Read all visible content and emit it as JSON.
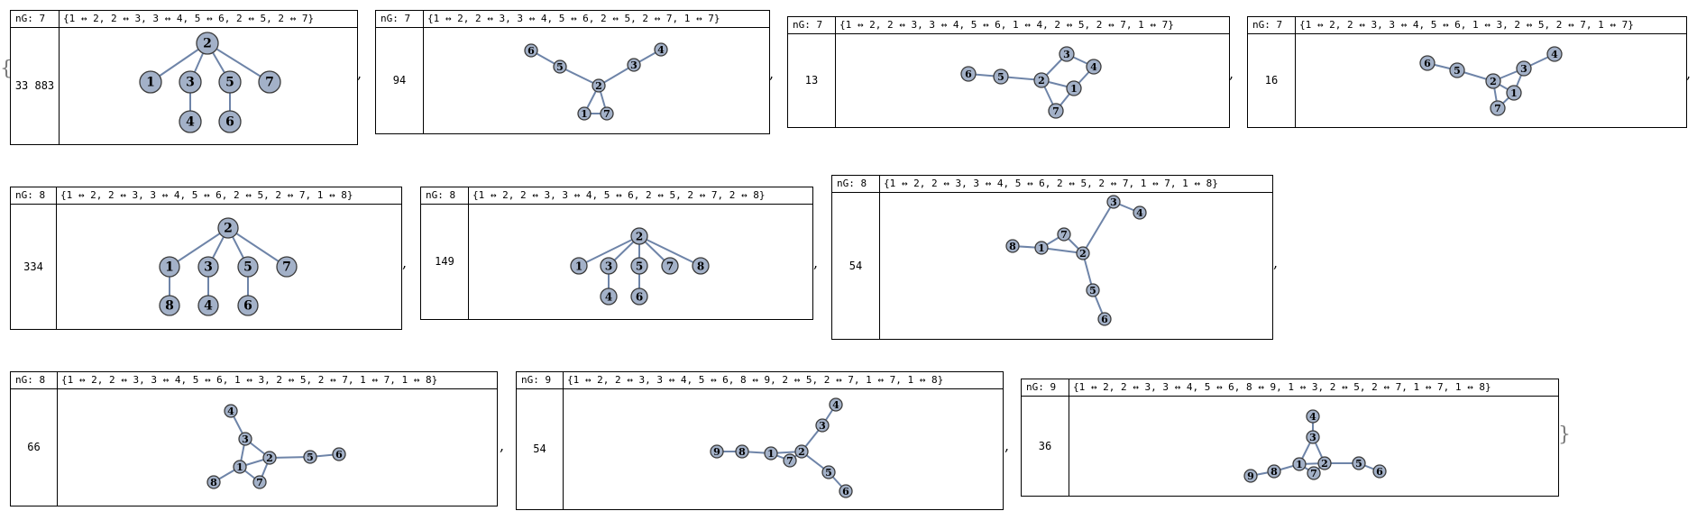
{
  "ng_label": "nG:",
  "separator": ",",
  "open_brace": "{",
  "close_brace": "}",
  "graphs": [
    {
      "n": "7",
      "edges": "{1 ↔ 2, 2 ↔ 3, 3 ↔ 4, 5 ↔ 6, 2 ↔ 5, 2 ↔ 7}",
      "count": "33 883",
      "nodes": [
        "2",
        "1",
        "3",
        "5",
        "7",
        "4",
        "6"
      ]
    },
    {
      "n": "7",
      "edges": "{1 ↔ 2, 2 ↔ 3, 3 ↔ 4, 5 ↔ 6, 2 ↔ 5, 2 ↔ 7, 1 ↔ 7}",
      "count": "94",
      "nodes": [
        "6",
        "5",
        "2",
        "3",
        "4",
        "1",
        "7"
      ]
    },
    {
      "n": "7",
      "edges": "{1 ↔ 2, 2 ↔ 3, 3 ↔ 4, 5 ↔ 6, 1 ↔ 4, 2 ↔ 5, 2 ↔ 7, 1 ↔ 7}",
      "count": "13",
      "nodes": [
        "6",
        "5",
        "2",
        "3",
        "4",
        "1",
        "7"
      ]
    },
    {
      "n": "7",
      "edges": "{1 ↔ 2, 2 ↔ 3, 3 ↔ 4, 5 ↔ 6, 1 ↔ 3, 2 ↔ 5, 2 ↔ 7, 1 ↔ 7}",
      "count": "16",
      "nodes": [
        "6",
        "5",
        "2",
        "3",
        "4",
        "1",
        "7"
      ]
    },
    {
      "n": "8",
      "edges": "{1 ↔ 2, 2 ↔ 3, 3 ↔ 4, 5 ↔ 6, 2 ↔ 5, 2 ↔ 7, 1 ↔ 8}",
      "count": "334",
      "nodes": [
        "2",
        "1",
        "3",
        "5",
        "7",
        "8",
        "4",
        "6"
      ]
    },
    {
      "n": "8",
      "edges": "{1 ↔ 2, 2 ↔ 3, 3 ↔ 4, 5 ↔ 6, 2 ↔ 5, 2 ↔ 7, 2 ↔ 8}",
      "count": "149",
      "nodes": [
        "2",
        "1",
        "3",
        "5",
        "7",
        "8",
        "4",
        "6"
      ]
    },
    {
      "n": "8",
      "edges": "{1 ↔ 2, 2 ↔ 3, 3 ↔ 4, 5 ↔ 6, 2 ↔ 5, 2 ↔ 7, 1 ↔ 7, 1 ↔ 8}",
      "count": "54",
      "nodes": [
        "4",
        "3",
        "7",
        "8",
        "1",
        "2",
        "5",
        "6"
      ]
    },
    {
      "n": "8",
      "edges": "{1 ↔ 2, 2 ↔ 3, 3 ↔ 4, 5 ↔ 6, 1 ↔ 3, 2 ↔ 5, 2 ↔ 7, 1 ↔ 7, 1 ↔ 8}",
      "count": "66",
      "nodes": [
        "4",
        "3",
        "2",
        "5",
        "6",
        "1",
        "8",
        "7"
      ]
    },
    {
      "n": "9",
      "edges": "{1 ↔ 2, 2 ↔ 3, 3 ↔ 4, 5 ↔ 6, 8 ↔ 9, 2 ↔ 5, 2 ↔ 7, 1 ↔ 7, 1 ↔ 8}",
      "count": "54",
      "nodes": [
        "4",
        "3",
        "9",
        "8",
        "1",
        "2",
        "7",
        "5",
        "6"
      ]
    },
    {
      "n": "9",
      "edges": "{1 ↔ 2, 2 ↔ 3, 3 ↔ 4, 5 ↔ 6, 8 ↔ 9, 1 ↔ 3, 2 ↔ 5, 2 ↔ 7, 1 ↔ 7, 1 ↔ 8}",
      "count": "36",
      "nodes": [
        "4",
        "3",
        "9",
        "8",
        "1",
        "2",
        "5",
        "6",
        "7"
      ]
    }
  ]
}
